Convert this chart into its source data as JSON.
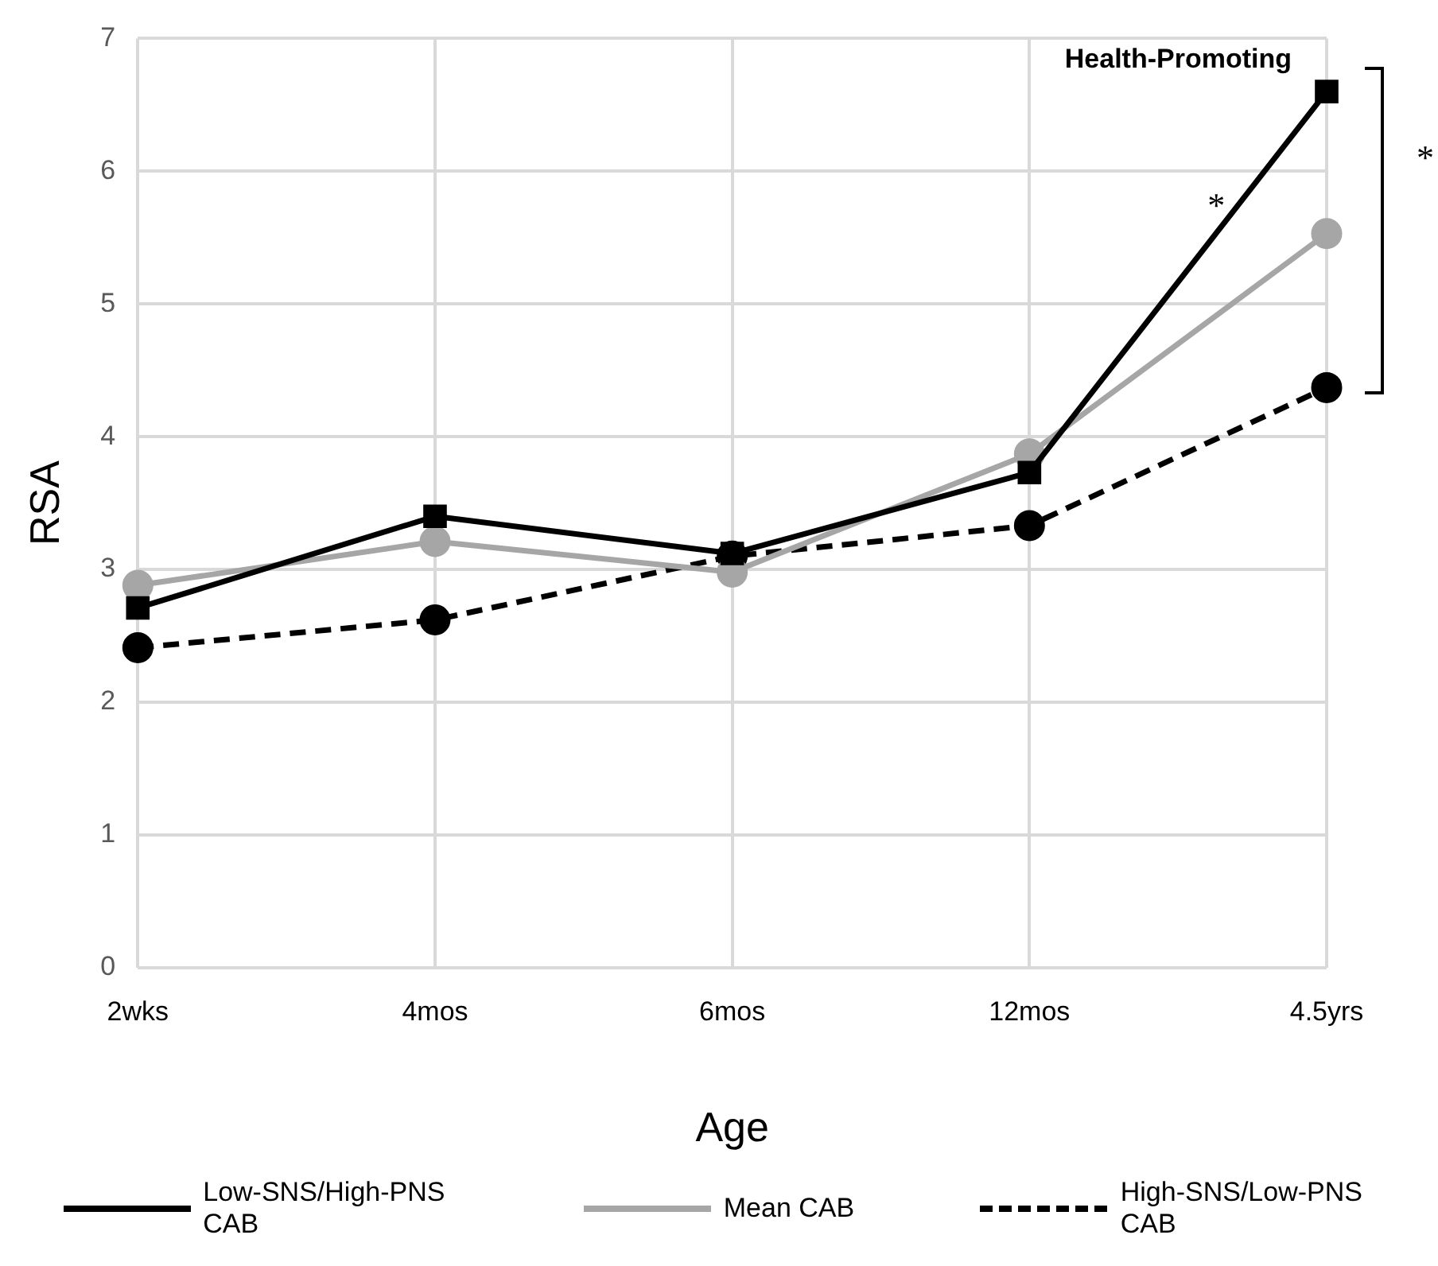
{
  "chart_data": {
    "type": "line",
    "xlabel": "Age",
    "ylabel": "RSA",
    "categories": [
      "2wks",
      "4mos",
      "6mos",
      "12mos",
      "4.5yrs"
    ],
    "series": [
      {
        "name": "Low-SNS/High-PNS CAB",
        "color": "#000000",
        "values": [
          2.71,
          3.4,
          3.12,
          3.73,
          6.6
        ],
        "marker": "square",
        "line_style": "solid"
      },
      {
        "name": "Mean CAB",
        "color": "#a6a6a6",
        "values": [
          2.88,
          3.21,
          2.98,
          3.87,
          5.53
        ],
        "marker": "circle",
        "line_style": "solid"
      },
      {
        "name": "High-SNS/Low-PNS CAB",
        "color": "#000000",
        "values": [
          2.41,
          2.62,
          3.1,
          3.33,
          4.37
        ],
        "marker": "circle",
        "line_style": "dashed"
      }
    ],
    "ylim": [
      0,
      7
    ],
    "yticks": [
      0,
      1,
      2,
      3,
      4,
      5,
      6,
      7
    ],
    "grid": true,
    "legend": "bottom",
    "annotations": [
      {
        "text": "Health-Promoting",
        "x": "4.5yrs",
        "y": 6.6
      },
      "*",
      "*"
    ]
  }
}
